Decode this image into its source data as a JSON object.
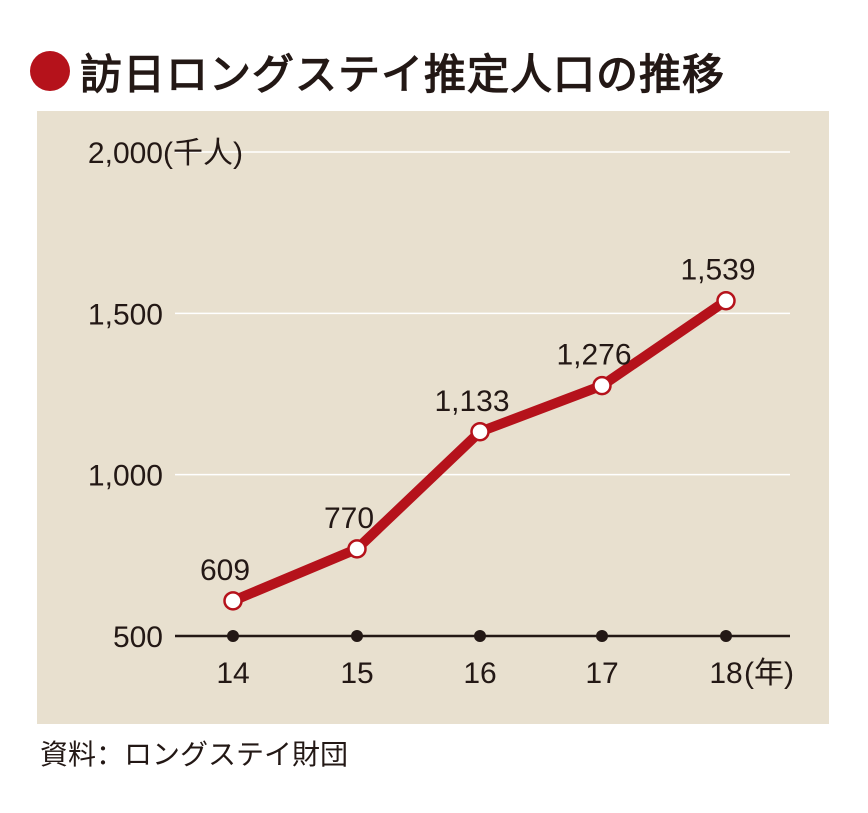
{
  "title": "訪日ロングステイ推定人口の推移",
  "source": "資料：ロングステイ財団",
  "colors": {
    "line": "#b5121b",
    "panel": "#e8e0cf",
    "text": "#231815"
  },
  "chart_data": {
    "type": "line",
    "title": "訪日ロングステイ推定人口の推移",
    "y_unit": "(千人)",
    "x_unit": "(年)",
    "categories": [
      "14",
      "15",
      "16",
      "17",
      "18"
    ],
    "series": [
      {
        "values": [
          609,
          770,
          1133,
          1276,
          1539
        ],
        "labels": [
          "609",
          "770",
          "1,133",
          "1,276",
          "1,539"
        ]
      }
    ],
    "y_ticks": [
      500,
      1000,
      1500,
      2000
    ],
    "y_tick_labels": [
      "500",
      "1,000",
      "1,500",
      "2,000"
    ],
    "ylim": [
      500,
      2000
    ],
    "grid": true,
    "legend": "none"
  }
}
